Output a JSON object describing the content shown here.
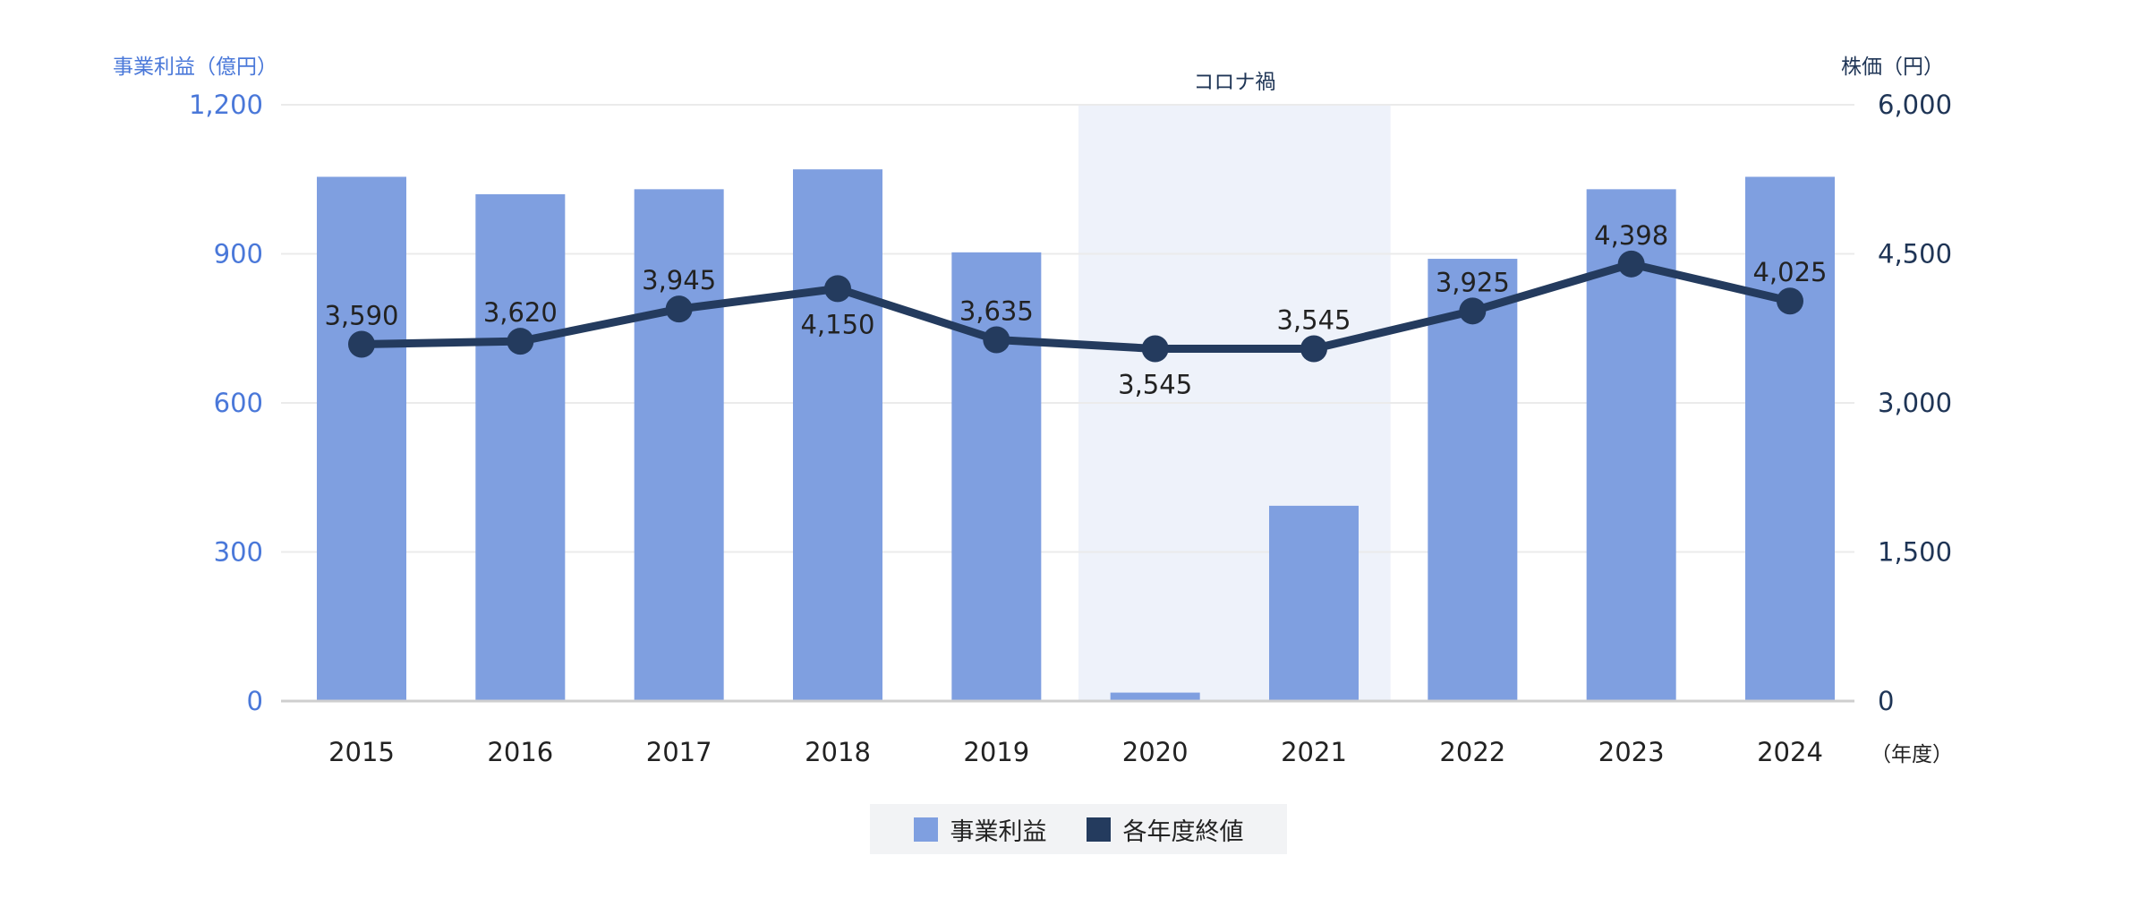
{
  "chart_data": {
    "type": "bar+line",
    "title": "",
    "categories": [
      "2015",
      "2016",
      "2017",
      "2018",
      "2019",
      "2020",
      "2021",
      "2022",
      "2023",
      "2024"
    ],
    "x_unit_label": "（年度）",
    "highlight": {
      "label": "コロナ禍",
      "categories": [
        "2020",
        "2021"
      ]
    },
    "left_axis": {
      "label": "事業利益（億円）",
      "ylim": [
        0,
        1200
      ],
      "ticks": [
        "0",
        "300",
        "600",
        "900",
        "1,200"
      ],
      "tick_values": [
        0,
        300,
        600,
        900,
        1200
      ]
    },
    "right_axis": {
      "label": "株価（円）",
      "ylim": [
        0,
        6000
      ],
      "ticks": [
        "0",
        "1,500",
        "3,000",
        "4,500",
        "6,000"
      ],
      "tick_values": [
        0,
        1500,
        3000,
        4500,
        6000
      ]
    },
    "series": [
      {
        "name": "事業利益",
        "kind": "bar",
        "axis": "left",
        "color": "#7f9fe0",
        "values": [
          1055,
          1020,
          1030,
          1070,
          903,
          17,
          393,
          890,
          1030,
          1055
        ]
      },
      {
        "name": "各年度終値",
        "kind": "line",
        "axis": "right",
        "color": "#243b5e",
        "values": [
          3590,
          3620,
          3945,
          4150,
          3635,
          3545,
          3545,
          3925,
          4398,
          4025
        ],
        "labels": [
          "3,590",
          "3,620",
          "3,945",
          "4,150",
          "3,635",
          "3,545",
          "3,545",
          "3,925",
          "4,398",
          "4,025"
        ],
        "label_positions": [
          "above",
          "above",
          "above",
          "below",
          "above",
          "below",
          "above",
          "above",
          "above",
          "above"
        ]
      }
    ],
    "colors": {
      "left_axis": "#4a78d9",
      "right_axis": "#1f3556",
      "highlight": "#eef2fa",
      "grid": "#ebebeb"
    },
    "legend": {
      "items": [
        "事業利益",
        "各年度終値"
      ],
      "placement": "bottom-center"
    },
    "grid": true
  }
}
